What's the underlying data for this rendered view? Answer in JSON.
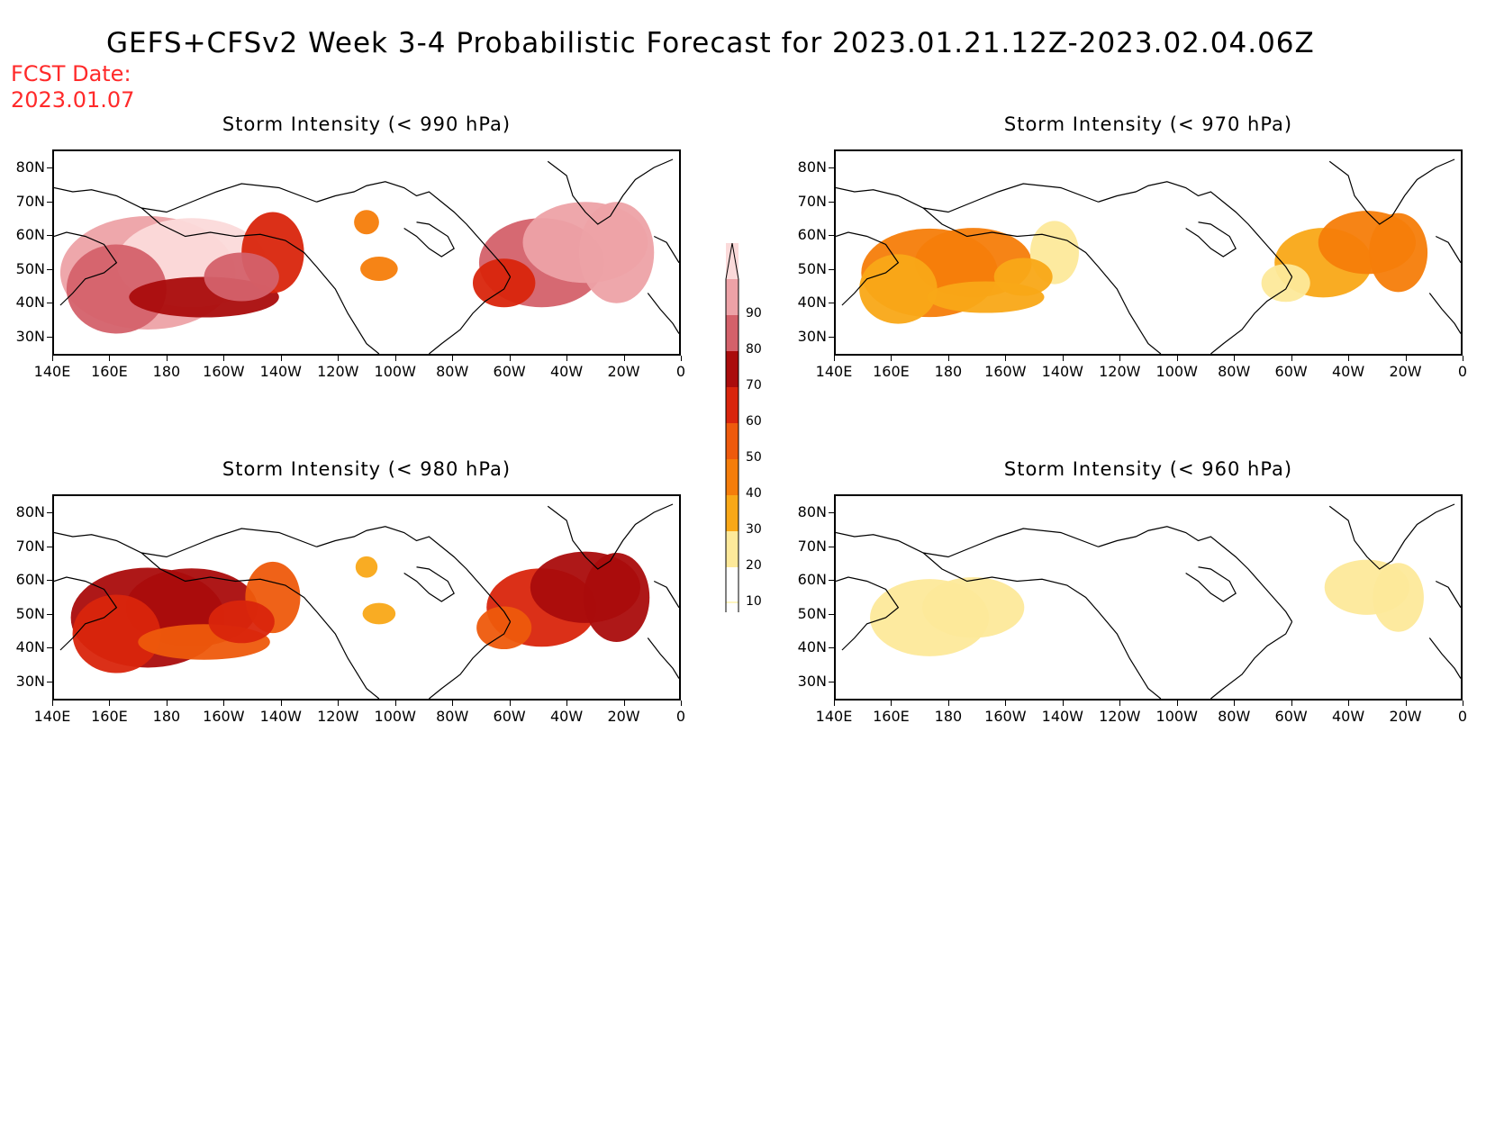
{
  "title": "GEFS+CFSv2 Week 3-4 Probabilistic Forecast for 2023.01.21.12Z-2023.02.04.06Z",
  "fcst_date": {
    "label": "FCST Date:",
    "value": "2023.01.07"
  },
  "axes": {
    "lat_labels": [
      "80N",
      "70N",
      "60N",
      "50N",
      "40N",
      "30N"
    ],
    "lon_labels": [
      "140E",
      "160E",
      "180",
      "160W",
      "140W",
      "120W",
      "100W",
      "80W",
      "60W",
      "40W",
      "20W",
      "0"
    ]
  },
  "colorbar": {
    "levels": [
      "10",
      "20",
      "30",
      "40",
      "50",
      "60",
      "70",
      "80",
      "90"
    ],
    "colors": [
      "#fff6c0",
      "#fde99a",
      "#f9a817",
      "#f57d0a",
      "#ee5a0c",
      "#d9250c",
      "#aa0c0c",
      "#d4616a",
      "#eda2a7",
      "#fbdada"
    ]
  },
  "panels": [
    {
      "title": "Storm Intensity (< 990 hPa)",
      "pos": "top-left",
      "intensity": 1.0
    },
    {
      "title": "Storm Intensity (< 970 hPa)",
      "pos": "top-right",
      "intensity": 0.45
    },
    {
      "title": "Storm Intensity (< 980 hPa)",
      "pos": "bottom-left",
      "intensity": 0.7
    },
    {
      "title": "Storm Intensity (< 960 hPa)",
      "pos": "bottom-right",
      "intensity": 0.2
    }
  ]
}
